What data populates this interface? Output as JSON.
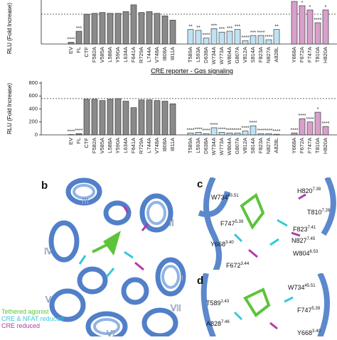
{
  "chart_data": [
    {
      "type": "bar",
      "y_label": "RLU (Fold Increase)",
      "categories": [
        "EV",
        "FL",
        "CTF",
        "F582A",
        "V585A",
        "L588A",
        "Y590A",
        "L634A",
        "F641A",
        "R729A",
        "L744A",
        "V748A",
        "I808A",
        "I811A",
        "T589A",
        "L593A",
        "D638A",
        "W734A",
        "W773A",
        "W804A",
        "G807A",
        "V812A",
        "S814A",
        "F823A",
        "N827A",
        "A828L",
        "Y668A",
        "F672A",
        "F747A",
        "T810A",
        "H820A"
      ],
      "values": [
        2,
        15,
        35,
        36,
        37,
        36,
        36,
        38,
        46,
        37,
        38,
        36,
        33,
        28,
        17,
        16,
        7,
        18,
        14,
        15,
        17,
        4,
        10,
        10,
        5,
        17,
        50,
        45,
        40,
        25,
        40
      ],
      "annotations": [
        "****",
        "***",
        null,
        null,
        null,
        null,
        null,
        null,
        null,
        null,
        null,
        null,
        null,
        null,
        "**",
        "**",
        "****",
        "***",
        "***",
        "***",
        "***",
        "****",
        "***",
        "****",
        "****",
        "**",
        null,
        "*",
        "*",
        "****",
        "*"
      ],
      "colors": [
        "#8a8a8a",
        "#8a8a8a",
        "#8a8a8a",
        "#8a8a8a",
        "#8a8a8a",
        "#8a8a8a",
        "#8a8a8a",
        "#8a8a8a",
        "#8a8a8a",
        "#8a8a8a",
        "#8a8a8a",
        "#8a8a8a",
        "#8a8a8a",
        "#8a8a8a",
        "#bfe2f4",
        "#bfe2f4",
        "#bfe2f4",
        "#bfe2f4",
        "#bfe2f4",
        "#bfe2f4",
        "#bfe2f4",
        "#bfe2f4",
        "#bfe2f4",
        "#bfe2f4",
        "#bfe2f4",
        "#bfe2f4",
        "#d8a0cc",
        "#d8a0cc",
        "#d8a0cc",
        "#d8a0cc",
        "#d8a0cc"
      ],
      "ylim": [
        0,
        50
      ],
      "reference_line": 35
    },
    {
      "type": "bar",
      "title": "CRE reporter - Gαs signaling",
      "y_label": "RLU (Fold Increase)",
      "categories": [
        "EV",
        "FL",
        "CTF",
        "F582A",
        "V585A",
        "L588A",
        "Y590A",
        "L634A",
        "F641A",
        "R729A",
        "L744A",
        "V748A",
        "I808A",
        "I811A",
        "T589A",
        "L593A",
        "D638A",
        "W734A",
        "W773A",
        "W804A",
        "G807A",
        "V812A",
        "S814A",
        "F823A",
        "N827A",
        "A828L",
        "Y668A",
        "F672A",
        "F747A",
        "T810A",
        "H820A"
      ],
      "values": [
        5,
        20,
        550,
        550,
        530,
        550,
        560,
        520,
        420,
        540,
        540,
        530,
        520,
        480,
        30,
        40,
        20,
        110,
        40,
        30,
        30,
        60,
        140,
        20,
        20,
        10,
        30,
        250,
        200,
        350,
        130
      ],
      "annotations": [
        "****",
        "****",
        null,
        null,
        null,
        null,
        null,
        null,
        null,
        null,
        null,
        null,
        null,
        null,
        "****",
        "****",
        "****",
        "****",
        "****",
        "****",
        "****",
        "****",
        "****",
        "****",
        "****",
        "****",
        "****",
        "****",
        "****",
        "*",
        "****"
      ],
      "colors": [
        "#8a8a8a",
        "#8a8a8a",
        "#8a8a8a",
        "#8a8a8a",
        "#8a8a8a",
        "#8a8a8a",
        "#8a8a8a",
        "#8a8a8a",
        "#8a8a8a",
        "#8a8a8a",
        "#8a8a8a",
        "#8a8a8a",
        "#8a8a8a",
        "#8a8a8a",
        "#bfe2f4",
        "#bfe2f4",
        "#bfe2f4",
        "#bfe2f4",
        "#bfe2f4",
        "#bfe2f4",
        "#bfe2f4",
        "#bfe2f4",
        "#bfe2f4",
        "#bfe2f4",
        "#bfe2f4",
        "#bfe2f4",
        "#d8a0cc",
        "#d8a0cc",
        "#d8a0cc",
        "#d8a0cc",
        "#d8a0cc"
      ],
      "ylim": [
        0,
        800
      ],
      "yticks": [
        0,
        200,
        400,
        600,
        800
      ],
      "reference_line": 560
    }
  ],
  "structure": {
    "panel_b": {
      "label": "b",
      "helices": [
        "I",
        "II",
        "III",
        "IV",
        "V",
        "VI",
        "VII"
      ],
      "legend": [
        {
          "text": "Tethered agonist",
          "color": "#5cc43a"
        },
        {
          "text": "CRE & NFAT reduced",
          "color": "#36c8d6"
        },
        {
          "text": "CRE reduced",
          "color": "#b23aa8"
        }
      ]
    },
    "panel_c": {
      "label": "c",
      "residues": [
        {
          "name": "H820",
          "sup": "7.38"
        },
        {
          "name": "W734",
          "sup": "45.51"
        },
        {
          "name": "T810",
          "sup": "7.28"
        },
        {
          "name": "F747",
          "sup": "5.39"
        },
        {
          "name": "F823",
          "sup": "7.41"
        },
        {
          "name": "N827",
          "sup": "7.45"
        },
        {
          "name": "Y668",
          "sup": "3.40"
        },
        {
          "name": "W804",
          "sup": "6.53"
        },
        {
          "name": "F672",
          "sup": "3.44"
        }
      ]
    },
    "panel_d": {
      "label": "d",
      "residues": [
        {
          "name": "W734",
          "sup": "45.51"
        },
        {
          "name": "T589",
          "sup": "1.43"
        },
        {
          "name": "F747",
          "sup": "5.39"
        },
        {
          "name": "A828",
          "sup": "7.46"
        },
        {
          "name": "Y668",
          "sup": "3.40"
        }
      ]
    }
  }
}
